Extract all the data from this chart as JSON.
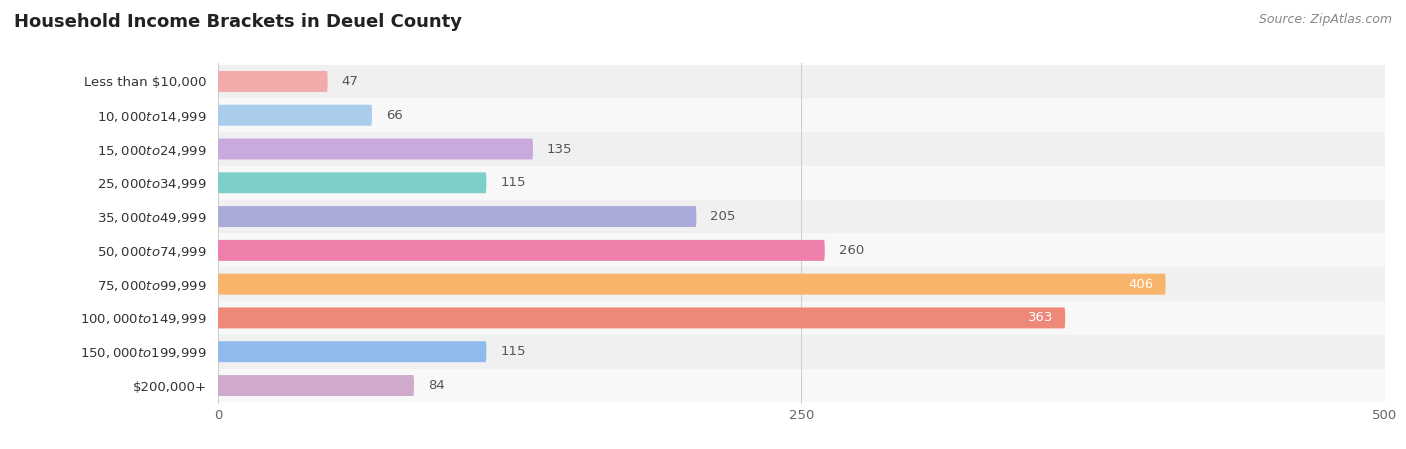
{
  "title": "Household Income Brackets in Deuel County",
  "source": "Source: ZipAtlas.com",
  "categories": [
    "Less than $10,000",
    "$10,000 to $14,999",
    "$15,000 to $24,999",
    "$25,000 to $34,999",
    "$35,000 to $49,999",
    "$50,000 to $74,999",
    "$75,000 to $99,999",
    "$100,000 to $149,999",
    "$150,000 to $199,999",
    "$200,000+"
  ],
  "values": [
    47,
    66,
    135,
    115,
    205,
    260,
    406,
    363,
    115,
    84
  ],
  "colors": [
    "#F2AAAA",
    "#AACCED",
    "#C8AADF",
    "#7DCFCA",
    "#AAAAD8",
    "#EE7FAA",
    "#F7B46A",
    "#EE8878",
    "#90BAEB",
    "#CFAACC"
  ],
  "xlim": [
    0,
    500
  ],
  "xticks": [
    0,
    250,
    500
  ],
  "row_bg_even": "#f0f0f0",
  "row_bg_odd": "#f8f8f8",
  "title_fontsize": 13,
  "label_fontsize": 9.5,
  "value_fontsize": 9.5,
  "value_white_threshold": 340
}
